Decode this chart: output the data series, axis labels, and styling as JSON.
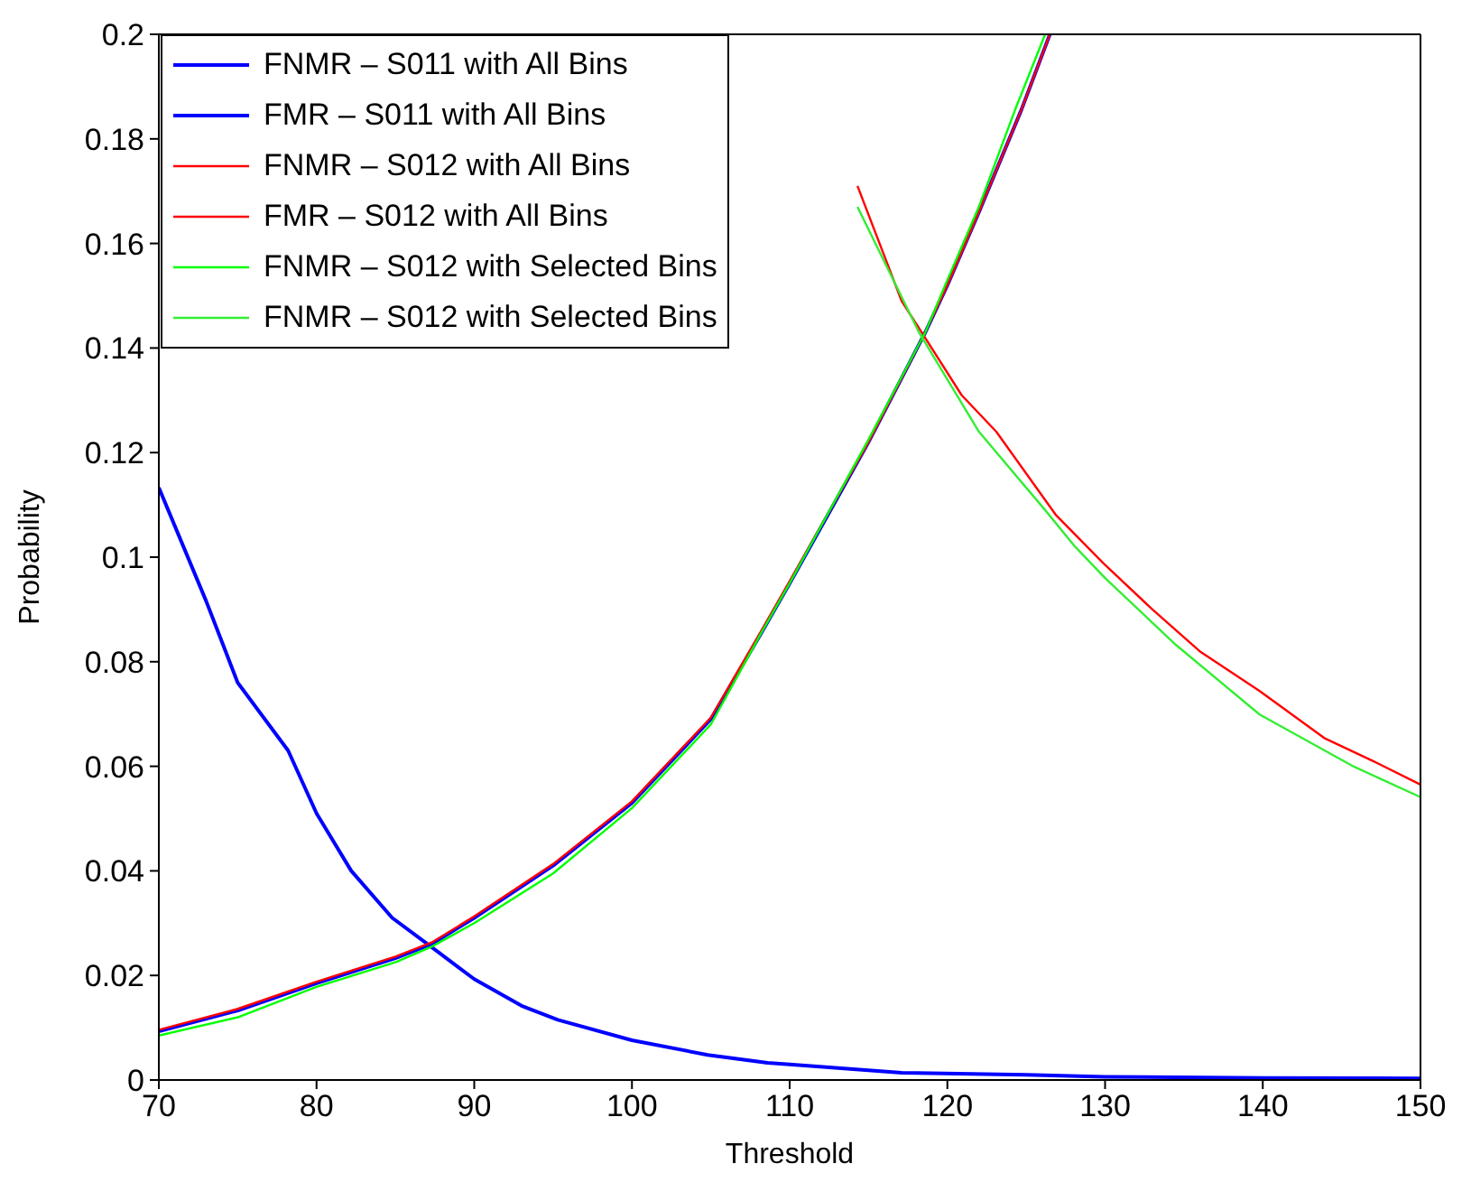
{
  "chart_data": {
    "type": "line",
    "xlabel": "Threshold",
    "ylabel": "Probability",
    "xlim": [
      70,
      150
    ],
    "xticks": [
      70,
      80,
      90,
      100,
      110,
      120,
      130,
      140,
      150
    ],
    "ylim": [
      0,
      0.2
    ],
    "yticks": [
      0,
      0.02,
      0.04,
      0.06,
      0.08,
      0.1,
      0.12,
      0.14,
      0.16,
      0.18,
      0.2
    ],
    "legend": "top left",
    "marker": "none",
    "line_style": "solid",
    "series": [
      {
        "name": "FNMR – S011 with All Bins",
        "color": "#0000ff",
        "x": [
          70,
          75,
          80,
          85,
          87.3,
          90,
          95,
          100,
          105,
          108.2,
          110,
          115,
          118.6,
          120,
          122,
          124.7,
          126.5
        ],
        "values": [
          0.0093,
          0.0133,
          0.0185,
          0.0233,
          0.026,
          0.031,
          0.041,
          0.053,
          0.069,
          0.0855,
          0.095,
          0.122,
          0.143,
          0.152,
          0.166,
          0.1856,
          0.2
        ]
      },
      {
        "name": "FMR – S011 with All Bins",
        "color": "#0000ff",
        "x": [
          70,
          73,
          75,
          78.2,
          80,
          82.2,
          84.8,
          87.3,
          90,
          93,
          95.3,
          100,
          104.8,
          108.6,
          110,
          117.1,
          125,
          130,
          140,
          150
        ],
        "values": [
          0.1133,
          0.0916,
          0.076,
          0.063,
          0.051,
          0.04,
          0.031,
          0.0254,
          0.0193,
          0.0142,
          0.0115,
          0.0076,
          0.0048,
          0.0033,
          0.003,
          0.0014,
          0.001,
          0.0006,
          0.0004,
          0.0003
        ]
      },
      {
        "name": "FNMR – S012 with All Bins",
        "color": "#ff0000",
        "x": [
          70,
          75,
          80,
          85,
          87.3,
          90,
          95,
          100,
          105,
          108.2,
          110,
          115,
          118.6,
          120,
          122,
          124.7,
          126.5
        ],
        "values": [
          0.0096,
          0.0136,
          0.0188,
          0.0236,
          0.0263,
          0.0313,
          0.0413,
          0.0533,
          0.0693,
          0.0859,
          0.0954,
          0.122,
          0.143,
          0.152,
          0.166,
          0.1856,
          0.2
        ]
      },
      {
        "name": "FMR – S012 with All Bins",
        "color": "#ff0000",
        "x": [
          114.3,
          117.1,
          120.9,
          123.1,
          126.9,
          129.9,
          133,
          136,
          139.8,
          143.9,
          147,
          150
        ],
        "values": [
          0.171,
          0.149,
          0.131,
          0.124,
          0.108,
          0.0988,
          0.09,
          0.082,
          0.0744,
          0.0654,
          0.061,
          0.0565
        ]
      },
      {
        "name": "FNMR – S012 with Selected Bins",
        "color": "#00ff00",
        "x": [
          70,
          75,
          80,
          85,
          87.3,
          90,
          95,
          100,
          105,
          108.2,
          110,
          115,
          118.6,
          120,
          122,
          124.3,
          126.2
        ],
        "values": [
          0.0085,
          0.012,
          0.0178,
          0.0225,
          0.0255,
          0.03,
          0.0395,
          0.052,
          0.068,
          0.0855,
          0.095,
          0.1225,
          0.143,
          0.153,
          0.167,
          0.1856,
          0.2
        ]
      },
      {
        "name": "FNMR – S012 with Selected Bins",
        "color": "#33ee33",
        "x": [
          114.3,
          118.2,
          122,
          126.2,
          128.1,
          130,
          134.5,
          139.8,
          145.8,
          150
        ],
        "values": [
          0.167,
          0.143,
          0.124,
          0.109,
          0.102,
          0.096,
          0.0832,
          0.0699,
          0.0599,
          0.0541
        ]
      }
    ]
  }
}
